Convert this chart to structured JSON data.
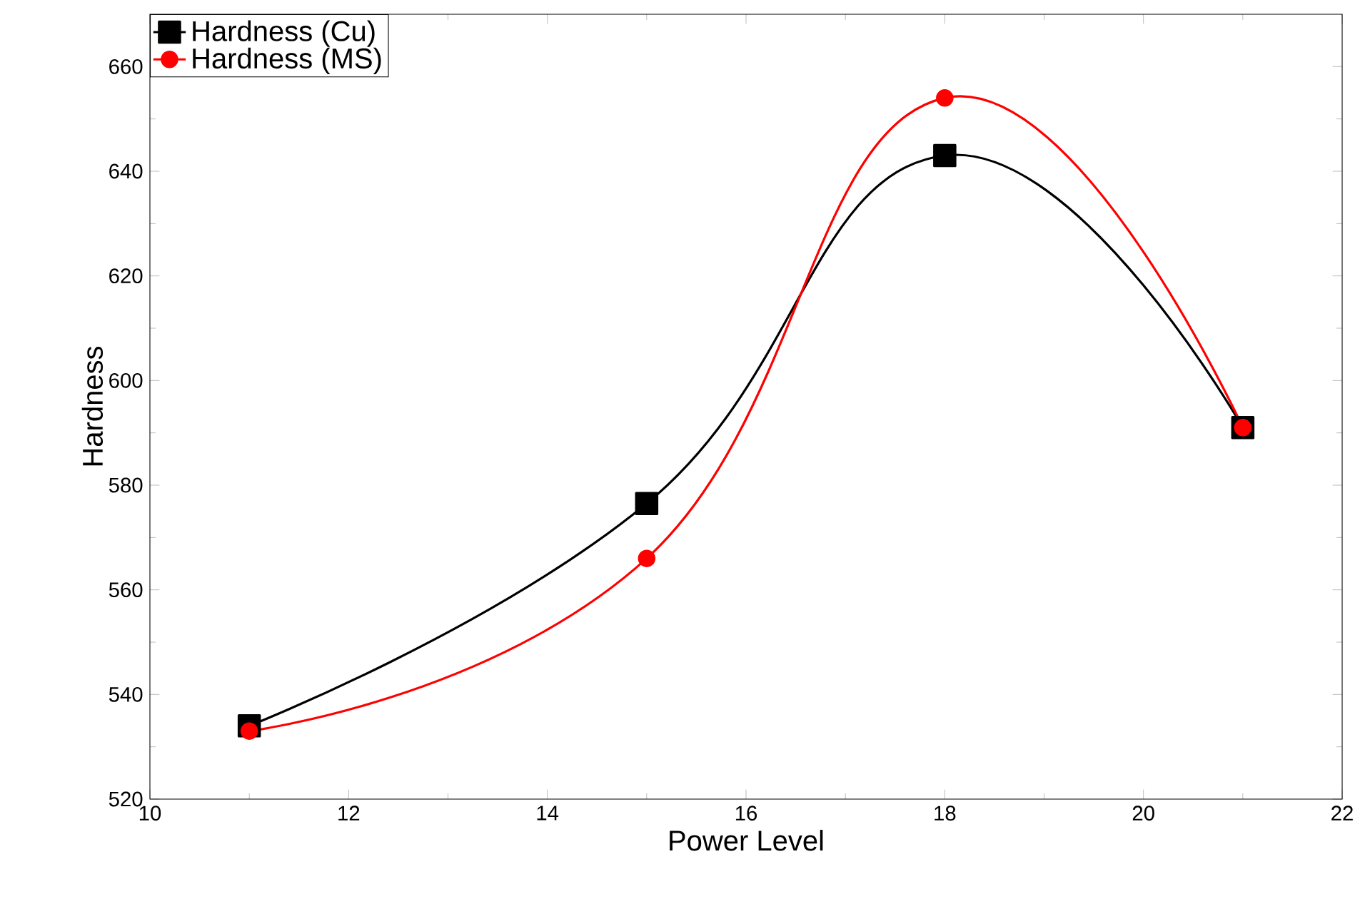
{
  "chart_data": {
    "type": "line",
    "xlabel": "Power Level",
    "ylabel": "Hardness",
    "x": [
      11,
      15,
      18,
      21
    ],
    "series": [
      {
        "name": "Hardness (Cu)",
        "color": "#000000",
        "marker": "square",
        "values": [
          534,
          576.5,
          643,
          591
        ]
      },
      {
        "name": "Hardness (MS)",
        "color": "#ff0000",
        "marker": "circle",
        "values": [
          533,
          566,
          654,
          591
        ]
      }
    ],
    "xlim": [
      10,
      22
    ],
    "ylim": [
      520,
      670
    ],
    "xticks": [
      10,
      12,
      14,
      16,
      18,
      20,
      22
    ],
    "yticks": [
      520,
      540,
      560,
      580,
      600,
      620,
      640,
      660
    ],
    "legend": "top left",
    "grid": false,
    "line_style": "solid"
  }
}
